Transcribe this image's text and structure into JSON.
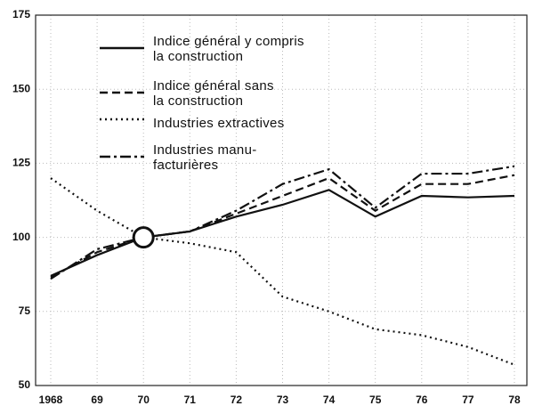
{
  "chart_data": {
    "type": "line",
    "categories": [
      "1968",
      "69",
      "70",
      "71",
      "72",
      "73",
      "74",
      "75",
      "76",
      "77",
      "78"
    ],
    "series": [
      {
        "name": "Indice général y compris\nla construction",
        "color": "#111111",
        "dash": "solid",
        "values": [
          87,
          94,
          100,
          102,
          107,
          111,
          116,
          107,
          114,
          113.5,
          114
        ]
      },
      {
        "name": "Indice général sans\nla construction",
        "color": "#111111",
        "dash": "dashed",
        "values": [
          86.5,
          95,
          100,
          102,
          108,
          114,
          120,
          109,
          118,
          118,
          121
        ]
      },
      {
        "name": "Industries  extractives",
        "color": "#111111",
        "dash": "dotted",
        "values": [
          120,
          109,
          100,
          98,
          95,
          80,
          75,
          69,
          67,
          63,
          57
        ]
      },
      {
        "name": "Industries manu-\nfacturières",
        "color": "#111111",
        "dash": "dashdot",
        "values": [
          86,
          96,
          100,
          102,
          109,
          118,
          123,
          110,
          121.5,
          121.5,
          124
        ]
      }
    ],
    "ylim": [
      50,
      175
    ],
    "yticks": [
      50,
      75,
      100,
      125,
      150,
      175
    ],
    "grid": true
  }
}
